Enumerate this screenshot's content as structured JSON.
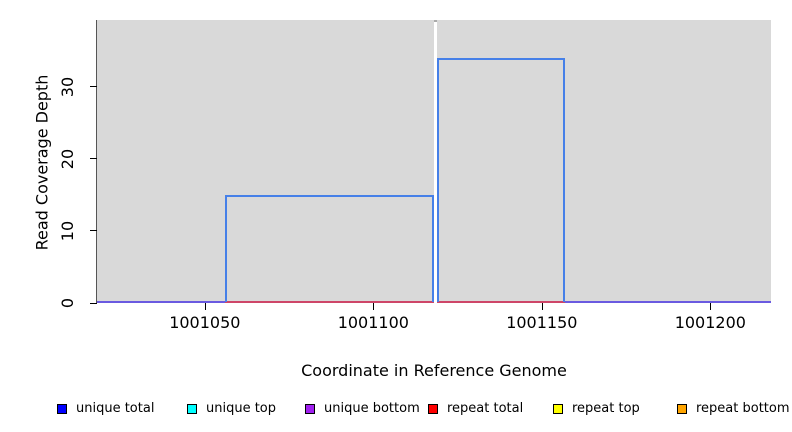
{
  "chart_data": {
    "type": "step-area",
    "title": "",
    "xlabel": "Coordinate in Reference Genome",
    "ylabel": "Read Coverage Depth",
    "xlim": [
      1001018,
      1001218
    ],
    "ylim": [
      0,
      39.3
    ],
    "x_ticks": [
      1001050,
      1001100,
      1001150,
      1001200
    ],
    "y_ticks": [
      0,
      10,
      20,
      30
    ],
    "grid": false,
    "plot_background": "#d9d9d9",
    "coverage_line_color": "#4680e8",
    "coverage_regions": [
      {
        "series": "unique total",
        "start": 1001056,
        "end": 1001118,
        "depth": 15
      },
      {
        "series": "unique total",
        "start": 1001119,
        "end": 1001157,
        "depth": 34
      }
    ],
    "gap_region": {
      "start": 1001118,
      "end": 1001119
    },
    "zero_lines": [
      {
        "name": "unique zero line",
        "color": "#6a5ae0",
        "start": 1001018,
        "end": 1001218
      },
      {
        "name": "repeat zero line",
        "color": "#ce4568",
        "start": 1001056,
        "end": 1001157
      }
    ],
    "legend_position": "bottom",
    "legend": [
      {
        "label": "unique total",
        "color": "#0000ff"
      },
      {
        "label": "unique top",
        "color": "#00ffff"
      },
      {
        "label": "unique bottom",
        "color": "#a020f0"
      },
      {
        "label": "repeat total",
        "color": "#ff0000"
      },
      {
        "label": "repeat top",
        "color": "#ffff00"
      },
      {
        "label": "repeat bottom",
        "color": "#ffa500"
      }
    ]
  }
}
